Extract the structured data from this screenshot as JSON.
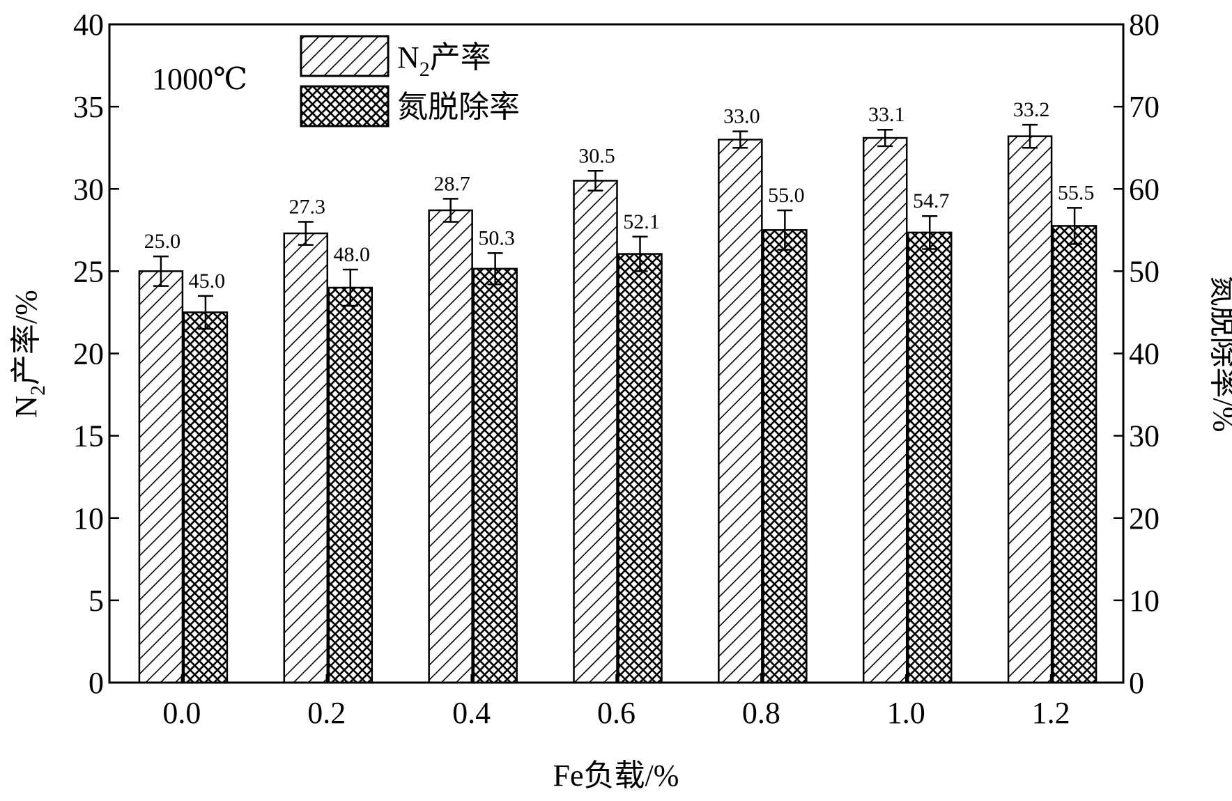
{
  "chart_data": {
    "type": "bar",
    "categories": [
      "0.0",
      "0.2",
      "0.4",
      "0.6",
      "0.8",
      "1.0",
      "1.2"
    ],
    "series": [
      {
        "name": "N₂产率",
        "axis": "left",
        "pattern": "diagonal-hatch",
        "values": [
          25.0,
          27.3,
          28.7,
          30.5,
          33.0,
          33.1,
          33.2
        ],
        "labels": [
          "25.0",
          "27.3",
          "28.7",
          "30.5",
          "33.0",
          "33.1",
          "33.2"
        ],
        "errors": [
          0.9,
          0.7,
          0.7,
          0.6,
          0.5,
          0.5,
          0.7
        ]
      },
      {
        "name": "氮脱除率",
        "axis": "right",
        "pattern": "cross-hatch",
        "values": [
          45.0,
          48.0,
          50.3,
          52.1,
          55.0,
          54.7,
          55.5
        ],
        "labels": [
          "45.0",
          "48.0",
          "50.3",
          "52.1",
          "55.0",
          "54.7",
          "55.5"
        ],
        "errors": [
          2.0,
          2.2,
          1.9,
          2.1,
          2.4,
          2.0,
          2.2
        ]
      }
    ],
    "xlabel": "Fe负载/%",
    "ylabel_left": {
      "main": "N",
      "sub": "2",
      "rest": "产率/%"
    },
    "ylabel_right": "氮脱除率/%",
    "ylim_left": [
      0,
      40
    ],
    "yticks_left": [
      "0",
      "5",
      "10",
      "15",
      "20",
      "25",
      "30",
      "35",
      "40"
    ],
    "ylim_right": [
      0,
      80
    ],
    "yticks_right": [
      "0",
      "10",
      "20",
      "30",
      "40",
      "50",
      "60",
      "70",
      "80"
    ],
    "annotation": "1000℃",
    "legend": {
      "placement": "top-left",
      "entries": [
        {
          "main": "N",
          "sub": "2",
          "rest": "产率"
        },
        {
          "main": "氮脱除率",
          "sub": "",
          "rest": ""
        }
      ]
    },
    "grid": false,
    "colors": {
      "bar_fill": "#ffffff",
      "stroke": "#000000"
    }
  }
}
